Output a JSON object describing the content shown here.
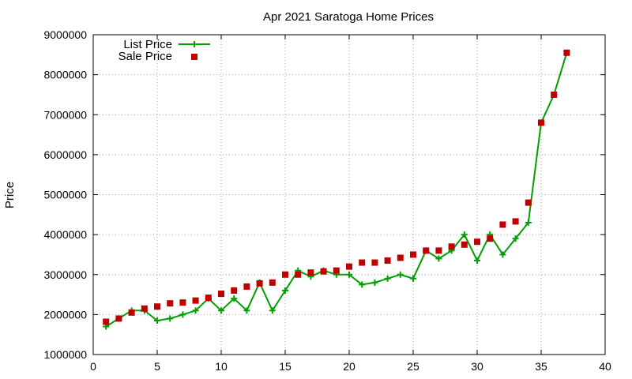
{
  "chart_data": {
    "type": "line",
    "title": "Apr 2021 Saratoga Home Prices",
    "xlabel": "",
    "ylabel": "Price",
    "xlim": [
      0,
      40
    ],
    "ylim": [
      1000000,
      9000000
    ],
    "xticks": [
      0,
      5,
      10,
      15,
      20,
      25,
      30,
      35,
      40
    ],
    "yticks": [
      1000000,
      2000000,
      3000000,
      4000000,
      5000000,
      6000000,
      7000000,
      8000000,
      9000000
    ],
    "grid": true,
    "legend_position": "top-left",
    "x": [
      1,
      2,
      3,
      4,
      5,
      6,
      7,
      8,
      9,
      10,
      11,
      12,
      13,
      14,
      15,
      16,
      17,
      18,
      19,
      20,
      21,
      22,
      23,
      24,
      25,
      26,
      27,
      28,
      29,
      30,
      31,
      32,
      33,
      34,
      35,
      36,
      37
    ],
    "series": [
      {
        "name": "List Price",
        "style": "line-with-plus-markers",
        "color": "#00a000",
        "values": [
          1700000,
          1900000,
          2100000,
          2100000,
          1850000,
          1900000,
          2000000,
          2100000,
          2400000,
          2100000,
          2400000,
          2100000,
          2800000,
          2100000,
          2600000,
          3100000,
          2950000,
          3100000,
          3000000,
          3000000,
          2750000,
          2800000,
          2900000,
          3000000,
          2900000,
          3600000,
          3400000,
          3600000,
          4000000,
          3350000,
          4000000,
          3500000,
          3900000,
          4300000,
          6800000,
          7500000,
          8550000
        ]
      },
      {
        "name": "Sale Price",
        "style": "square-markers",
        "color": "#c00000",
        "values": [
          1820000,
          1900000,
          2050000,
          2150000,
          2200000,
          2280000,
          2300000,
          2350000,
          2420000,
          2520000,
          2600000,
          2700000,
          2780000,
          2800000,
          3000000,
          3000000,
          3050000,
          3080000,
          3100000,
          3200000,
          3300000,
          3300000,
          3350000,
          3420000,
          3500000,
          3600000,
          3600000,
          3700000,
          3750000,
          3820000,
          3900000,
          4250000,
          4330000,
          4800000,
          6800000,
          7500000,
          8550000
        ]
      }
    ]
  }
}
